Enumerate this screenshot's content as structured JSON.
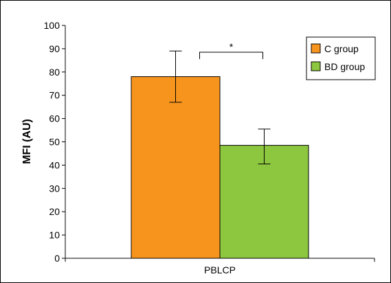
{
  "chart_data": {
    "type": "bar",
    "categories": [
      "PBLCP"
    ],
    "ylabel": "MFI (AU)",
    "xlabel": "",
    "ylim": [
      0,
      100
    ],
    "yticks": [
      0,
      10,
      20,
      30,
      40,
      50,
      60,
      70,
      80,
      90,
      100
    ],
    "grid": false,
    "legend_position": "top-right",
    "series": [
      {
        "name": "C group",
        "values": [
          78
        ],
        "error_low": [
          67
        ],
        "error_high": [
          89
        ],
        "color": "#f7941d"
      },
      {
        "name": "BD group",
        "values": [
          48.5
        ],
        "error_low": [
          40.5
        ],
        "error_high": [
          55.5
        ],
        "color": "#8dc63f"
      }
    ],
    "annotations": [
      {
        "text": "*",
        "between_series": [
          0,
          1
        ]
      }
    ]
  }
}
